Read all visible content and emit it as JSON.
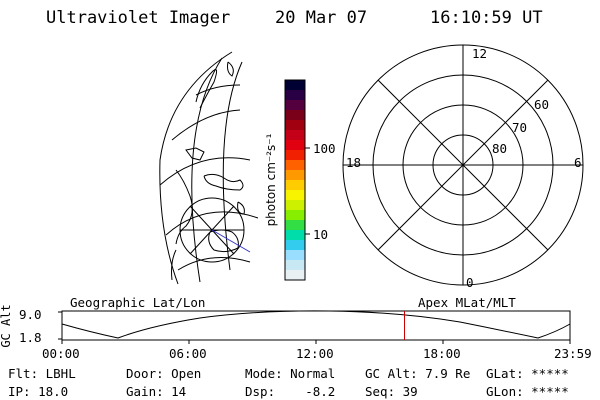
{
  "header": {
    "title": "Ultraviolet Imager",
    "date": "20 Mar 07",
    "time": "16:10:59 UT"
  },
  "colorbar": {
    "unit_label": "photon cm⁻²s⁻¹",
    "tick_100": "100",
    "tick_10": "10",
    "colors": [
      "#000033",
      "#2a0044",
      "#55003e",
      "#7a001a",
      "#a00010",
      "#c40018",
      "#e00010",
      "#f02000",
      "#ff6000",
      "#ff9900",
      "#ffcc00",
      "#f8f400",
      "#ccf000",
      "#88ee00",
      "#33dd44",
      "#00ddaa",
      "#33ccee",
      "#99ddff",
      "#c8e8f4",
      "#e8f0f4"
    ]
  },
  "polar_plot": {
    "mlt_labels": {
      "top": "12",
      "left": "18",
      "right": "6",
      "bottom": "0"
    },
    "lat_labels": [
      "60",
      "70",
      "80"
    ]
  },
  "timeline": {
    "y_axis_title": "GC Alt",
    "y_max": "9.0",
    "y_min": "1.8",
    "left_caption": "Geographic Lat/Lon",
    "right_caption": "Apex MLat/MLT",
    "time_ticks": [
      "00:00",
      "06:00",
      "12:00",
      "18:00",
      "23:59"
    ],
    "current_time_marker_hours": 16.18,
    "marker_color": "#cc0000"
  },
  "info": {
    "flt": "Flt: LBHL",
    "ip": "IP: 18.0",
    "door": "Door: Open",
    "gain": "Gain: 14",
    "mode": "Mode: Normal",
    "dsp": "Dsp:    -8.2",
    "gc_alt": "GC Alt: 7.9 Re",
    "seq": "Seq: 39",
    "glat": "GLat: *****",
    "glon": "GLon: *****"
  }
}
